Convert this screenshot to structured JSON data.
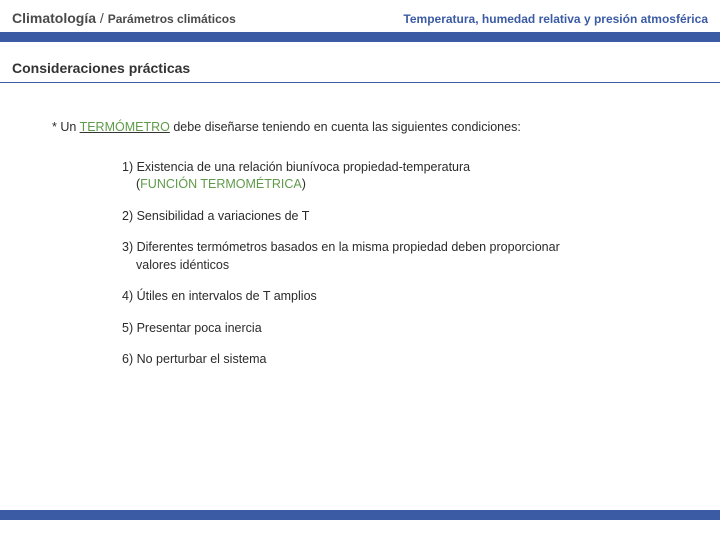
{
  "colors": {
    "accent": "#3b5ba5",
    "highlight": "#5f9a4a",
    "text": "#2b2b2b",
    "header_text": "#4a4a4a",
    "background": "#ffffff"
  },
  "header": {
    "left_main": "Climatología",
    "left_sep": " / ",
    "left_sub": "Parámetros climáticos",
    "right_emph": "Temperatura",
    "right_rest": ", humedad relativa y presión atmosférica"
  },
  "section_title": "Consideraciones prácticas",
  "intro": {
    "prefix": "* Un ",
    "term": "TERMÓMETRO",
    "suffix": " debe diseñarse teniendo en cuenta las siguientes condiciones:"
  },
  "conditions": [
    {
      "main": "1) Existencia de una relación biunívoca propiedad-temperatura",
      "sub_open": "(",
      "sub_term": "FUNCIÓN TERMOMÉTRICA",
      "sub_close": ")"
    },
    {
      "main": "2) Sensibilidad a variaciones de T"
    },
    {
      "main": "3) Diferentes termómetros basados en la misma propiedad deben proporcionar",
      "sub_plain": "valores idénticos"
    },
    {
      "main": "4) Útiles en intervalos de T amplios"
    },
    {
      "main": "5) Presentar poca inercia"
    },
    {
      "main": "6) No perturbar el sistema"
    }
  ]
}
